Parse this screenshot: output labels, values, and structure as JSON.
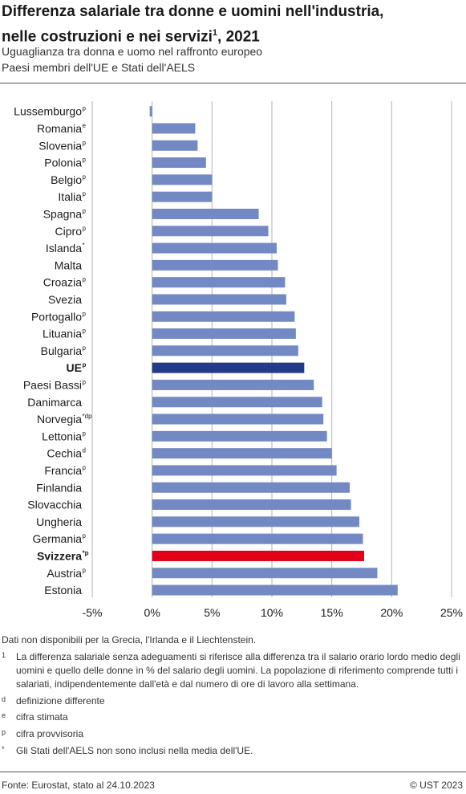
{
  "title_line1": "Differenza salariale tra donne e uomini nell'industria,",
  "title_line2_text": "nelle costruzioni e nei servizi",
  "title_line2_sup": "1",
  "title_line2_end": ", 2021",
  "subtitle1": "Uguaglianza tra donna e uomo nel raffronto europeo",
  "subtitle2": "Paesi membri dell'UE e Stati dell'AELS",
  "colors": {
    "bar": "#7389c3",
    "eu": "#233a8a",
    "switzerland": "#e3001b",
    "grid": "#b3b3b3"
  },
  "chart_data": {
    "type": "bar",
    "orientation": "horizontal",
    "xlim": [
      -5,
      25
    ],
    "xticks": [
      -5,
      0,
      5,
      10,
      15,
      20,
      25
    ],
    "xtick_labels": [
      "-5%",
      "0%",
      "5%",
      "10%",
      "15%",
      "20%",
      "25%"
    ],
    "grid": true,
    "categories": [
      {
        "name": "Lussemburgo",
        "sup": "p",
        "value": -0.2
      },
      {
        "name": "Romania",
        "sup": "e",
        "value": 3.6
      },
      {
        "name": "Slovenia",
        "sup": "p",
        "value": 3.8
      },
      {
        "name": "Polonia",
        "sup": "p",
        "value": 4.5
      },
      {
        "name": "Belgio",
        "sup": "p",
        "value": 5.0
      },
      {
        "name": "Italia",
        "sup": "p",
        "value": 5.0
      },
      {
        "name": "Spagna",
        "sup": "p",
        "value": 8.9
      },
      {
        "name": "Cipro",
        "sup": "p",
        "value": 9.7
      },
      {
        "name": "Islanda",
        "sup": "*",
        "value": 10.4
      },
      {
        "name": "Malta",
        "sup": "",
        "value": 10.5
      },
      {
        "name": "Croazia",
        "sup": "p",
        "value": 11.1
      },
      {
        "name": "Svezia",
        "sup": "",
        "value": 11.2
      },
      {
        "name": "Portogallo",
        "sup": "p",
        "value": 11.9
      },
      {
        "name": "Lituania",
        "sup": "p",
        "value": 12.0
      },
      {
        "name": "Bulgaria",
        "sup": "p",
        "value": 12.2
      },
      {
        "name": "UE",
        "sup": "p",
        "value": 12.7,
        "highlight": "eu"
      },
      {
        "name": "Paesi Bassi",
        "sup": "p",
        "value": 13.5
      },
      {
        "name": "Danimarca",
        "sup": "",
        "value": 14.2
      },
      {
        "name": "Norvegia",
        "sup": "*dp",
        "value": 14.3
      },
      {
        "name": "Lettonia",
        "sup": "p",
        "value": 14.6
      },
      {
        "name": "Cechia",
        "sup": "d",
        "value": 15.0
      },
      {
        "name": "Francia",
        "sup": "p",
        "value": 15.4
      },
      {
        "name": "Finlandia",
        "sup": "",
        "value": 16.5
      },
      {
        "name": "Slovacchia",
        "sup": "",
        "value": 16.6
      },
      {
        "name": "Ungheria",
        "sup": "",
        "value": 17.3
      },
      {
        "name": "Germania",
        "sup": "p",
        "value": 17.6
      },
      {
        "name": "Svizzera",
        "sup": "*p",
        "value": 17.7,
        "highlight": "switzerland"
      },
      {
        "name": "Austria",
        "sup": "p",
        "value": 18.8
      },
      {
        "name": "Estonia",
        "sup": "",
        "value": 20.5
      }
    ]
  },
  "notes": {
    "na": "Dati non disponibili per la Grecia, l'Irlanda e il Liechtenstein.",
    "fn1_marker": "1",
    "fn1_text": "La differenza salariale senza adeguamenti si riferisce alla differenza tra il salario orario lordo medio degli uomini e quello delle donne in % del salario degli uomini. La popolazione di riferimento comprende tutti i salariati, indipendentemente dall'età e dal numero di ore di lavoro alla settimana.",
    "d_marker": "d",
    "d_text": "definizione differente",
    "e_marker": "e",
    "e_text": "cifra stimata",
    "p_marker": "p",
    "p_text": "cifra provvisoria",
    "star_marker": "*",
    "star_text": "Gli Stati dell'AELS non sono inclusi nella media dell'UE."
  },
  "source": "Fonte: Eurostat, stato al 24.10.2023",
  "copyright": "© UST 2023"
}
